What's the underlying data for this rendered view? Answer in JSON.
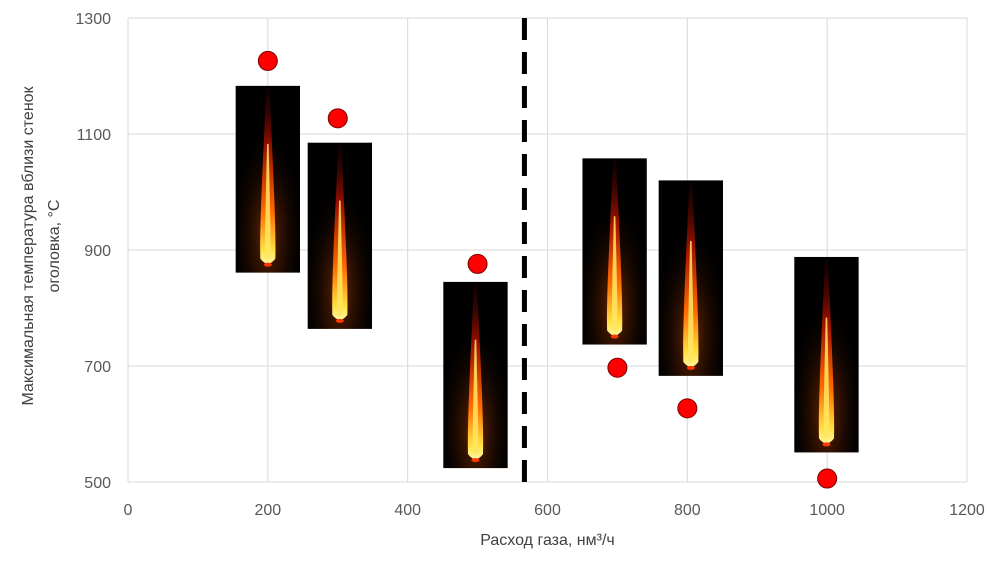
{
  "chart_data": {
    "type": "scatter",
    "title": "",
    "xlabel": "Расход газа, нм³/ч",
    "ylabel_line1": "Максимальная температура вблизи стенок",
    "ylabel_line2": "оголовка, °С",
    "xlim": [
      0,
      1200
    ],
    "ylim": [
      500,
      1300
    ],
    "xticks": [
      0,
      200,
      400,
      600,
      800,
      1000,
      1200
    ],
    "yticks": [
      500,
      700,
      900,
      1100,
      1300
    ],
    "xtick_labels": [
      "0",
      "200",
      "400",
      "600",
      "800",
      "1000",
      "1200"
    ],
    "ytick_labels": [
      "500",
      "700",
      "900",
      "1100",
      "1300"
    ],
    "grid": true,
    "legend": "none",
    "divider_x": 567,
    "marker_color": "#ff0000",
    "series": [
      {
        "x": [
          200,
          300,
          500,
          700,
          800,
          1000
        ],
        "y": [
          1226,
          1127,
          876,
          697,
          627,
          506
        ]
      }
    ],
    "flame_images": [
      {
        "x_center": 200,
        "x_halfwidth": 46,
        "y_top": 1183,
        "y_bottom": 861
      },
      {
        "x_center": 303,
        "x_halfwidth": 46,
        "y_top": 1085,
        "y_bottom": 764
      },
      {
        "x_center": 497,
        "x_halfwidth": 46,
        "y_top": 845,
        "y_bottom": 524
      },
      {
        "x_center": 696,
        "x_halfwidth": 46,
        "y_top": 1058,
        "y_bottom": 737
      },
      {
        "x_center": 805,
        "x_halfwidth": 46,
        "y_top": 1020,
        "y_bottom": 683
      },
      {
        "x_center": 999,
        "x_halfwidth": 46,
        "y_top": 888,
        "y_bottom": 551
      }
    ]
  }
}
